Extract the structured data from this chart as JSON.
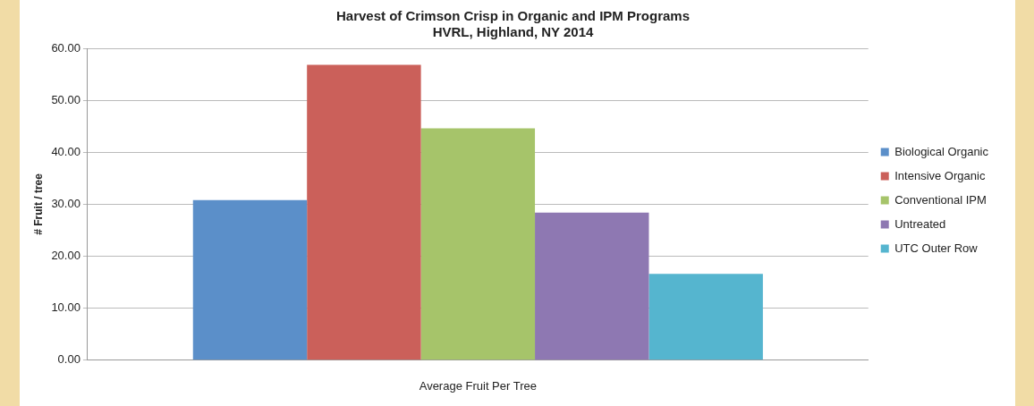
{
  "chart_data": {
    "type": "bar",
    "title": "Harvest of Crimson Crisp in Organic and IPM Programs",
    "subtitle": "HVRL, Highland, NY 2014",
    "xlabel": "Average Fruit Per Tree",
    "ylabel": "# Fruit / tree",
    "categories": [
      null
    ],
    "series": [
      {
        "name": "Biological Organic",
        "color": "#5b8fc9",
        "values": [
          30.8
        ]
      },
      {
        "name": "Intensive Organic",
        "color": "#cb605a",
        "values": [
          56.8
        ]
      },
      {
        "name": "Conventional IPM",
        "color": "#a6c46a",
        "values": [
          44.6
        ]
      },
      {
        "name": "Untreated",
        "color": "#8e78b2",
        "values": [
          28.4
        ]
      },
      {
        "name": "UTC Outer Row",
        "color": "#55b5cf",
        "values": [
          16.6
        ]
      }
    ],
    "ylim": [
      0,
      60
    ],
    "yticks": [
      {
        "value": 0,
        "label": "0.00"
      },
      {
        "value": 10,
        "label": "10.00"
      },
      {
        "value": 20,
        "label": "20.00"
      },
      {
        "value": 30,
        "label": "30.00"
      },
      {
        "value": 40,
        "label": "40.00"
      },
      {
        "value": 50,
        "label": "50.00"
      },
      {
        "value": 60,
        "label": "60.00"
      }
    ],
    "grid": "y",
    "legend": "right"
  }
}
